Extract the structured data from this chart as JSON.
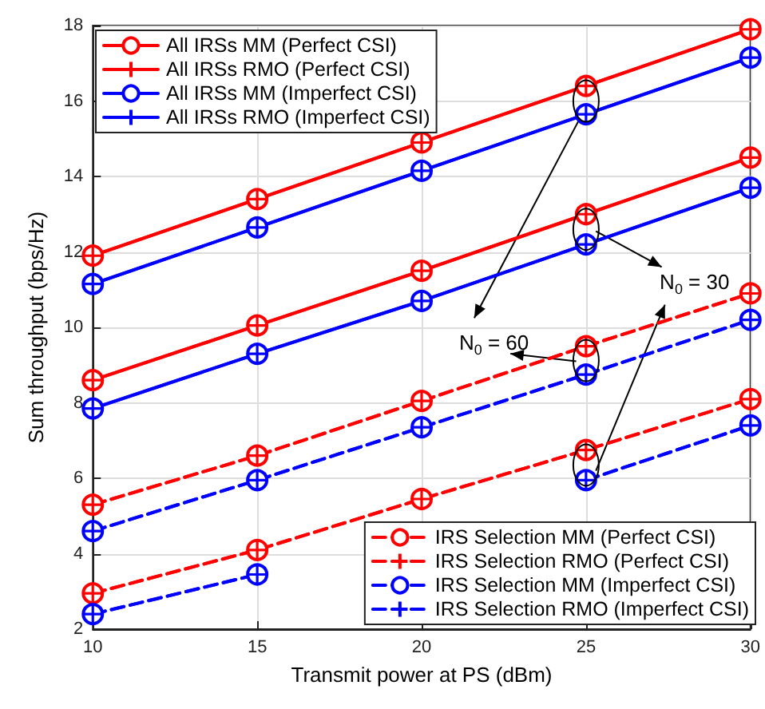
{
  "chart_data": {
    "type": "line",
    "xlabel": "Transmit power at PS (dBm)",
    "ylabel": "Sum throughput (bps/Hz)",
    "x": [
      10,
      15,
      20,
      25,
      30
    ],
    "xlim": [
      10,
      30
    ],
    "xticks": [
      10,
      15,
      20,
      25,
      30
    ],
    "ylim": [
      2,
      18
    ],
    "yticks": [
      2,
      4,
      6,
      8,
      10,
      12,
      14,
      16,
      18
    ],
    "grid": true,
    "legend": [
      "top left",
      "bottom right"
    ],
    "series": [
      {
        "name": "All IRSs MM (Perfect CSI)",
        "color": "#ff0000",
        "marker": "circle",
        "line_style": "solid",
        "values": [
          11.9,
          13.4,
          14.9,
          16.4,
          17.9
        ]
      },
      {
        "name": "All IRSs RMO (Perfect CSI)",
        "color": "#ff0000",
        "marker": "cross",
        "line_style": "solid",
        "values": [
          11.9,
          13.4,
          14.9,
          16.4,
          17.9
        ]
      },
      {
        "name": "All IRSs MM (Imperfect CSI)",
        "color": "#0000ff",
        "marker": "circle",
        "line_style": "solid",
        "values": [
          11.15,
          12.65,
          14.15,
          15.65,
          17.15
        ]
      },
      {
        "name": "All IRSs RMO (Imperfect CSI)",
        "color": "#0000ff",
        "marker": "cross",
        "line_style": "solid",
        "values": [
          11.15,
          12.65,
          14.15,
          15.65,
          17.15
        ]
      },
      {
        "name": "IRS Selection MM (Perfect CSI)",
        "color": "#ff0000",
        "marker": "circle",
        "line_style": "dashed",
        "values": [
          5.3,
          6.6,
          8.05,
          9.5,
          10.9
        ]
      },
      {
        "name": "IRS Selection RMO (Perfect CSI)",
        "color": "#ff0000",
        "marker": "cross",
        "line_style": "dashed",
        "values": [
          5.3,
          6.6,
          8.05,
          9.5,
          10.9
        ]
      },
      {
        "name": "IRS Selection MM (Imperfect CSI)",
        "color": "#0000ff",
        "marker": "circle",
        "line_style": "dashed",
        "values": [
          4.6,
          5.95,
          7.35,
          8.75,
          10.2
        ]
      },
      {
        "name": "IRS Selection RMO (Imperfect CSI)",
        "color": "#0000ff",
        "marker": "cross",
        "line_style": "dashed",
        "values": [
          4.6,
          5.95,
          7.35,
          8.75,
          10.2
        ]
      },
      {
        "color": "#ff0000",
        "marker": "circle",
        "line_style": "solid",
        "values": [
          8.6,
          10.05,
          11.5,
          13.0,
          14.5
        ]
      },
      {
        "color": "#ff0000",
        "marker": "cross",
        "line_style": "solid",
        "values": [
          8.6,
          10.05,
          11.5,
          13.0,
          14.5
        ]
      },
      {
        "color": "#0000ff",
        "marker": "circle",
        "line_style": "solid",
        "values": [
          7.85,
          9.3,
          10.7,
          12.2,
          13.7
        ]
      },
      {
        "color": "#0000ff",
        "marker": "cross",
        "line_style": "solid",
        "values": [
          7.85,
          9.3,
          10.7,
          12.2,
          13.7
        ]
      },
      {
        "color": "#ff0000",
        "marker": "circle",
        "line_style": "dashed",
        "values": [
          2.95,
          4.1,
          5.45,
          6.75,
          8.1
        ]
      },
      {
        "color": "#ff0000",
        "marker": "cross",
        "line_style": "dashed",
        "values": [
          2.95,
          4.1,
          5.45,
          6.75,
          8.1
        ]
      },
      {
        "color": "#0000ff",
        "marker": "circle",
        "line_style": "dashed",
        "values": [
          2.4,
          3.45,
          null,
          5.95,
          7.4
        ]
      },
      {
        "color": "#0000ff",
        "marker": "cross",
        "line_style": "dashed",
        "values": [
          2.4,
          3.45,
          null,
          5.95,
          7.4
        ]
      }
    ],
    "annotations": [
      "N$_{0}$ = 60",
      "N$_{0}$ = 30"
    ]
  }
}
